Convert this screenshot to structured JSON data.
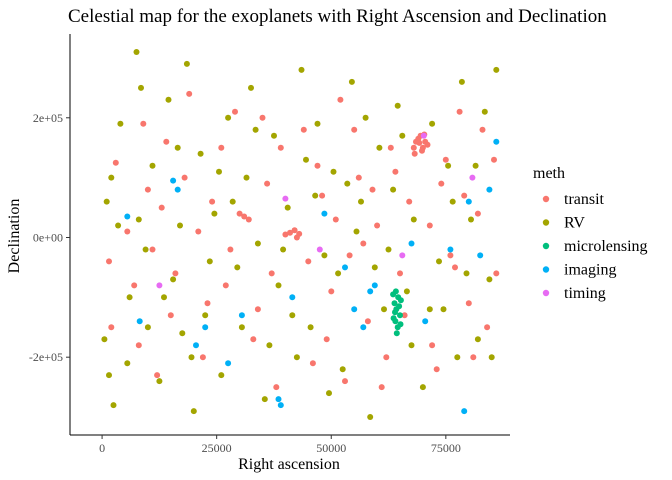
{
  "chart_data": {
    "type": "scatter",
    "title": "Celestial map for the exoplanets with Right Ascension and Declination",
    "xlabel": "Right ascension",
    "ylabel": "Declination",
    "xlim": [
      -7000,
      89000
    ],
    "ylim": [
      -330000,
      340000
    ],
    "x_ticks": [
      {
        "value": 0,
        "label": "0"
      },
      {
        "value": 25000,
        "label": "25000"
      },
      {
        "value": 50000,
        "label": "50000"
      },
      {
        "value": 75000,
        "label": "75000"
      }
    ],
    "y_ticks": [
      {
        "value": -200000,
        "label": "-2e+05"
      },
      {
        "value": 0,
        "label": "0e+00"
      },
      {
        "value": 200000,
        "label": "2e+05"
      }
    ],
    "grid": false,
    "legend_title": "meth",
    "legend_position": "right",
    "series": [
      {
        "name": "transit",
        "color": "#F8766D",
        "points": [
          [
            1500,
            -40000
          ],
          [
            3000,
            125000
          ],
          [
            5500,
            10000
          ],
          [
            8000,
            -180000
          ],
          [
            10000,
            80000
          ],
          [
            12000,
            -230000
          ],
          [
            14000,
            160000
          ],
          [
            16000,
            -60000
          ],
          [
            19000,
            240000
          ],
          [
            21000,
            10000
          ],
          [
            23000,
            -110000
          ],
          [
            26000,
            150000
          ],
          [
            28000,
            -20000
          ],
          [
            30000,
            40000
          ],
          [
            31000,
            35000
          ],
          [
            32000,
            30000
          ],
          [
            33000,
            -170000
          ],
          [
            35000,
            200000
          ],
          [
            37000,
            -60000
          ],
          [
            40000,
            5000
          ],
          [
            41000,
            8000
          ],
          [
            42000,
            12000
          ],
          [
            42500,
            0
          ],
          [
            43000,
            6000
          ],
          [
            44000,
            180000
          ],
          [
            46000,
            -210000
          ],
          [
            48000,
            70000
          ],
          [
            50000,
            -90000
          ],
          [
            52000,
            230000
          ],
          [
            54000,
            -30000
          ],
          [
            56000,
            100000
          ],
          [
            58000,
            -140000
          ],
          [
            60000,
            20000
          ],
          [
            61000,
            -250000
          ],
          [
            63000,
            150000
          ],
          [
            65000,
            -60000
          ],
          [
            67000,
            60000
          ],
          [
            68000,
            150000
          ],
          [
            68500,
            160000
          ],
          [
            69000,
            165000
          ],
          [
            69500,
            170000
          ],
          [
            70000,
            150000
          ],
          [
            70500,
            160000
          ],
          [
            71000,
            155000
          ],
          [
            68200,
            140000
          ],
          [
            69800,
            145000
          ],
          [
            70300,
            172000
          ],
          [
            69200,
            158000
          ],
          [
            72000,
            -180000
          ],
          [
            74000,
            90000
          ],
          [
            76000,
            -30000
          ],
          [
            78000,
            210000
          ],
          [
            80000,
            -110000
          ],
          [
            82000,
            40000
          ],
          [
            84000,
            -150000
          ],
          [
            85500,
            130000
          ],
          [
            86000,
            -60000
          ],
          [
            2000,
            -150000
          ],
          [
            7000,
            -80000
          ],
          [
            9000,
            190000
          ],
          [
            11000,
            -20000
          ],
          [
            13000,
            50000
          ],
          [
            15000,
            -130000
          ],
          [
            18000,
            100000
          ],
          [
            22000,
            -200000
          ],
          [
            24000,
            60000
          ],
          [
            27000,
            -80000
          ],
          [
            29000,
            210000
          ],
          [
            34000,
            -120000
          ],
          [
            36000,
            90000
          ],
          [
            38000,
            -250000
          ],
          [
            39000,
            150000
          ],
          [
            45000,
            -40000
          ],
          [
            47000,
            120000
          ],
          [
            49000,
            -170000
          ],
          [
            51000,
            30000
          ],
          [
            53000,
            -240000
          ],
          [
            55000,
            180000
          ],
          [
            57000,
            -10000
          ],
          [
            59000,
            80000
          ],
          [
            62000,
            -200000
          ],
          [
            64000,
            110000
          ],
          [
            66000,
            -130000
          ],
          [
            71500,
            20000
          ],
          [
            73000,
            -220000
          ],
          [
            75000,
            130000
          ],
          [
            77000,
            -50000
          ],
          [
            79000,
            70000
          ],
          [
            81000,
            -200000
          ],
          [
            83000,
            180000
          ]
        ]
      },
      {
        "name": "RV",
        "color": "#A3A500",
        "points": [
          [
            500,
            -170000
          ],
          [
            1000,
            60000
          ],
          [
            2500,
            -280000
          ],
          [
            4000,
            190000
          ],
          [
            6000,
            -100000
          ],
          [
            7500,
            310000
          ],
          [
            8500,
            250000
          ],
          [
            9500,
            -20000
          ],
          [
            11000,
            120000
          ],
          [
            12500,
            -240000
          ],
          [
            14500,
            230000
          ],
          [
            15500,
            -70000
          ],
          [
            17000,
            20000
          ],
          [
            18500,
            290000
          ],
          [
            20000,
            -290000
          ],
          [
            21500,
            140000
          ],
          [
            22500,
            -130000
          ],
          [
            24500,
            40000
          ],
          [
            26000,
            -230000
          ],
          [
            27500,
            200000
          ],
          [
            29500,
            -50000
          ],
          [
            31500,
            100000
          ],
          [
            32500,
            250000
          ],
          [
            34000,
            -10000
          ],
          [
            35500,
            -270000
          ],
          [
            37500,
            170000
          ],
          [
            38500,
            -80000
          ],
          [
            40500,
            50000
          ],
          [
            43500,
            280000
          ],
          [
            45500,
            -150000
          ],
          [
            47000,
            190000
          ],
          [
            48500,
            -30000
          ],
          [
            50500,
            110000
          ],
          [
            52500,
            -220000
          ],
          [
            54500,
            260000
          ],
          [
            56500,
            60000
          ],
          [
            58500,
            -300000
          ],
          [
            60500,
            150000
          ],
          [
            62500,
            -20000
          ],
          [
            64500,
            220000
          ],
          [
            66500,
            -90000
          ],
          [
            68000,
            30000
          ],
          [
            70000,
            -250000
          ],
          [
            72000,
            190000
          ],
          [
            73500,
            -40000
          ],
          [
            75500,
            120000
          ],
          [
            77500,
            -200000
          ],
          [
            78500,
            260000
          ],
          [
            80500,
            30000
          ],
          [
            82000,
            -170000
          ],
          [
            83500,
            210000
          ],
          [
            84500,
            -70000
          ],
          [
            86000,
            280000
          ],
          [
            3500,
            20000
          ],
          [
            5500,
            -210000
          ],
          [
            10000,
            -150000
          ],
          [
            16500,
            150000
          ],
          [
            19500,
            -200000
          ],
          [
            23500,
            -40000
          ],
          [
            28500,
            60000
          ],
          [
            33500,
            180000
          ],
          [
            36500,
            -180000
          ],
          [
            41500,
            -130000
          ],
          [
            46500,
            70000
          ],
          [
            51500,
            -60000
          ],
          [
            55500,
            10000
          ],
          [
            57500,
            200000
          ],
          [
            61500,
            -120000
          ],
          [
            63500,
            80000
          ],
          [
            67500,
            -180000
          ],
          [
            71500,
            -120000
          ],
          [
            76500,
            60000
          ],
          [
            79500,
            -60000
          ],
          [
            81500,
            120000
          ],
          [
            85000,
            -200000
          ],
          [
            2000,
            100000
          ],
          [
            13500,
            -100000
          ],
          [
            25500,
            110000
          ],
          [
            30500,
            -150000
          ],
          [
            39500,
            -20000
          ],
          [
            44500,
            130000
          ],
          [
            49500,
            -260000
          ],
          [
            53500,
            90000
          ],
          [
            59500,
            -50000
          ],
          [
            65500,
            170000
          ],
          [
            74500,
            -120000
          ],
          [
            1500,
            -230000
          ],
          [
            8000,
            30000
          ],
          [
            17500,
            -160000
          ],
          [
            42500,
            -200000
          ]
        ]
      },
      {
        "name": "microlensing",
        "color": "#00BF7D",
        "points": [
          [
            63800,
            -110000
          ],
          [
            64200,
            -120000
          ],
          [
            64600,
            -100000
          ],
          [
            65000,
            -130000
          ],
          [
            64000,
            -140000
          ],
          [
            64500,
            -150000
          ],
          [
            63500,
            -95000
          ],
          [
            65200,
            -105000
          ],
          [
            64300,
            -160000
          ],
          [
            63900,
            -125000
          ],
          [
            64800,
            -115000
          ],
          [
            64100,
            -90000
          ],
          [
            63600,
            -135000
          ],
          [
            65100,
            -145000
          ]
        ]
      },
      {
        "name": "imaging",
        "color": "#00B0F6",
        "points": [
          [
            5500,
            35000
          ],
          [
            8200,
            -140000
          ],
          [
            15500,
            95000
          ],
          [
            16500,
            80000
          ],
          [
            20500,
            -180000
          ],
          [
            22500,
            -150000
          ],
          [
            27500,
            -210000
          ],
          [
            30500,
            -130000
          ],
          [
            38500,
            -270000
          ],
          [
            39000,
            -280000
          ],
          [
            41500,
            -100000
          ],
          [
            48500,
            40000
          ],
          [
            53000,
            -50000
          ],
          [
            55000,
            -120000
          ],
          [
            57000,
            -150000
          ],
          [
            58500,
            -90000
          ],
          [
            59500,
            -80000
          ],
          [
            67500,
            -10000
          ],
          [
            70500,
            -140000
          ],
          [
            79000,
            -290000
          ],
          [
            80000,
            60000
          ],
          [
            82500,
            -30000
          ],
          [
            84500,
            80000
          ],
          [
            86000,
            160000
          ],
          [
            76000,
            -20000
          ]
        ]
      },
      {
        "name": "timing",
        "color": "#E76BF3",
        "points": [
          [
            12500,
            -80000
          ],
          [
            40000,
            65000
          ],
          [
            47500,
            -20000
          ],
          [
            65500,
            -30000
          ],
          [
            70200,
            170000
          ],
          [
            80800,
            100000
          ]
        ]
      }
    ]
  }
}
